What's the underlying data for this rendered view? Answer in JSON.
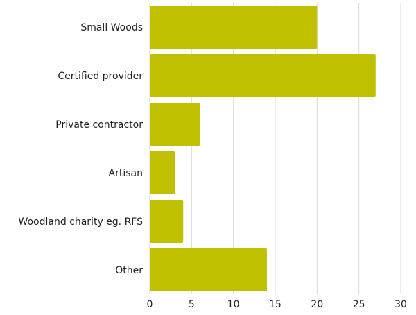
{
  "chart_data": {
    "type": "bar",
    "orientation": "horizontal",
    "categories": [
      "Small Woods",
      "Certified provider",
      "Private contractor",
      "Artisan",
      "Woodland charity eg. RFS",
      "Other"
    ],
    "values": [
      20,
      27,
      6,
      3,
      4,
      14
    ],
    "title": "",
    "xlabel": "",
    "ylabel": "",
    "xlim": [
      0,
      30
    ],
    "x_ticks": [
      "0",
      "5",
      "10",
      "15",
      "20",
      "25",
      "30"
    ],
    "grid": "vertical",
    "legend": "none",
    "bar_color": "#bfc000"
  }
}
